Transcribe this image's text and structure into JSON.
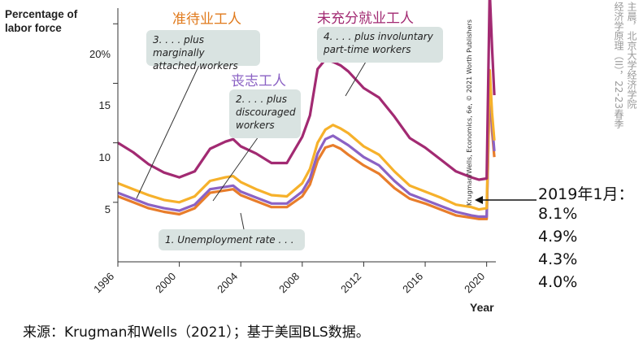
{
  "chart_data": {
    "type": "line",
    "ylabel": "Percentage of labor force",
    "xlabel": "Year",
    "xlim": [
      1996,
      2020.6
    ],
    "ylim": [
      0,
      22
    ],
    "yticks": [
      5,
      10,
      15,
      20
    ],
    "ytick_labels": [
      "5",
      "10",
      "15",
      "20%"
    ],
    "xticks": [
      "1996",
      "2000",
      "2004",
      "2008",
      "2012",
      "2016",
      "2020"
    ],
    "grid": false,
    "series": [
      {
        "name": "1. Unemployment rate . . .",
        "color": "#e87d2b",
        "x": [
          1996,
          1997,
          1998,
          1999,
          2000,
          2001,
          2002,
          2003,
          2003.5,
          2004,
          2005,
          2006,
          2007,
          2008,
          2008.5,
          2009,
          2009.5,
          2010,
          2010.5,
          2011,
          2012,
          2013,
          2014,
          2015,
          2016,
          2017,
          2018,
          2019,
          2019.5,
          2020,
          2020.2,
          2020.35,
          2020.5
        ],
        "y": [
          5.5,
          5.0,
          4.5,
          4.2,
          4.0,
          4.5,
          5.8,
          6.0,
          6.1,
          5.6,
          5.1,
          4.6,
          4.6,
          5.5,
          6.5,
          8.5,
          9.6,
          9.8,
          9.5,
          9.0,
          8.1,
          7.4,
          6.2,
          5.3,
          4.9,
          4.4,
          3.9,
          3.7,
          3.6,
          3.6,
          14.7,
          11.0,
          8.8
        ]
      },
      {
        "name": "2. . . . plus discouraged workers",
        "color": "#8b62c4",
        "x": [
          1996,
          1997,
          1998,
          1999,
          2000,
          2001,
          2002,
          2003,
          2003.5,
          2004,
          2005,
          2006,
          2007,
          2008,
          2008.5,
          2009,
          2009.5,
          2010,
          2010.5,
          2011,
          2012,
          2013,
          2014,
          2015,
          2016,
          2017,
          2018,
          2019,
          2019.5,
          2020,
          2020.2,
          2020.35,
          2020.5
        ],
        "y": [
          5.8,
          5.3,
          4.8,
          4.5,
          4.3,
          4.8,
          6.1,
          6.3,
          6.4,
          5.9,
          5.4,
          4.9,
          4.9,
          5.9,
          7.0,
          9.1,
          10.3,
          10.6,
          10.2,
          9.8,
          8.8,
          8.1,
          6.8,
          5.7,
          5.2,
          4.7,
          4.2,
          3.9,
          3.8,
          3.8,
          15.2,
          11.6,
          9.3
        ]
      },
      {
        "name": "3. . . . plus marginally attached workers",
        "color": "#f6b12b",
        "x": [
          1996,
          1997,
          1998,
          1999,
          2000,
          2001,
          2002,
          2003,
          2003.5,
          2004,
          2005,
          2006,
          2007,
          2008,
          2008.5,
          2009,
          2009.5,
          2010,
          2010.5,
          2011,
          2012,
          2013,
          2014,
          2015,
          2016,
          2017,
          2018,
          2019,
          2019.5,
          2020,
          2020.2,
          2020.35,
          2020.5
        ],
        "y": [
          6.6,
          6.1,
          5.6,
          5.2,
          5.0,
          5.5,
          6.8,
          7.1,
          7.2,
          6.7,
          6.1,
          5.6,
          5.5,
          6.6,
          7.8,
          10.0,
          11.1,
          11.5,
          11.2,
          10.8,
          9.7,
          9.0,
          7.6,
          6.4,
          5.9,
          5.4,
          4.8,
          4.6,
          4.4,
          4.5,
          16.1,
          12.5,
          10.2
        ]
      },
      {
        "name": "4. . . . plus involuntary part-time workers",
        "color": "#a22a72",
        "x": [
          1996,
          1997,
          1998,
          1999,
          2000,
          2001,
          2002,
          2003,
          2003.5,
          2004,
          2005,
          2006,
          2007,
          2008,
          2008.5,
          2009,
          2009.5,
          2010,
          2010.5,
          2011,
          2012,
          2013,
          2014,
          2015,
          2016,
          2017,
          2018,
          2019,
          2019.5,
          2020,
          2020.2,
          2020.35,
          2020.5
        ],
        "y": [
          10.0,
          9.2,
          8.2,
          7.5,
          7.1,
          7.6,
          9.5,
          10.1,
          10.3,
          9.7,
          9.1,
          8.3,
          8.3,
          10.5,
          12.3,
          16.2,
          17.0,
          16.8,
          16.5,
          16.0,
          14.6,
          13.8,
          12.2,
          10.4,
          9.6,
          8.6,
          7.6,
          7.1,
          6.9,
          7.0,
          22.8,
          18.0,
          14.0
        ]
      }
    ]
  },
  "annotations": {
    "a1": "1. Unemployment rate . . .",
    "a2_line1": "2. . . . plus",
    "a2_line2": "discouraged",
    "a2_line3": "workers",
    "a3_line1": "3. . . . plus marginally",
    "a3_line2": "attached workers",
    "a4_line1": "4. . . . plus involuntary",
    "a4_line2": "part-time workers"
  },
  "labels_cn": {
    "zhundaiye": "准待业工人",
    "sangzhi": "丧志工人",
    "weichongfen": "未充分就业工人"
  },
  "label_colors": {
    "zhundaiye": "#e07a1c",
    "sangzhi": "#8b62c4",
    "weichongfen": "#a22a72"
  },
  "credit": "Krugman/Wells, Economics, 6e, © 2021 Worth Publishers",
  "watermark": [
    "主晨，北京大学经济学院",
    "经济学原理（II），22-23春季"
  ],
  "note": {
    "title": "2019年1月：",
    "values": [
      "8.1%",
      "4.9%",
      "4.3%",
      "4.0%"
    ]
  },
  "source": "来源：Krugman和Wells（2021）；基于美国BLS数据。"
}
